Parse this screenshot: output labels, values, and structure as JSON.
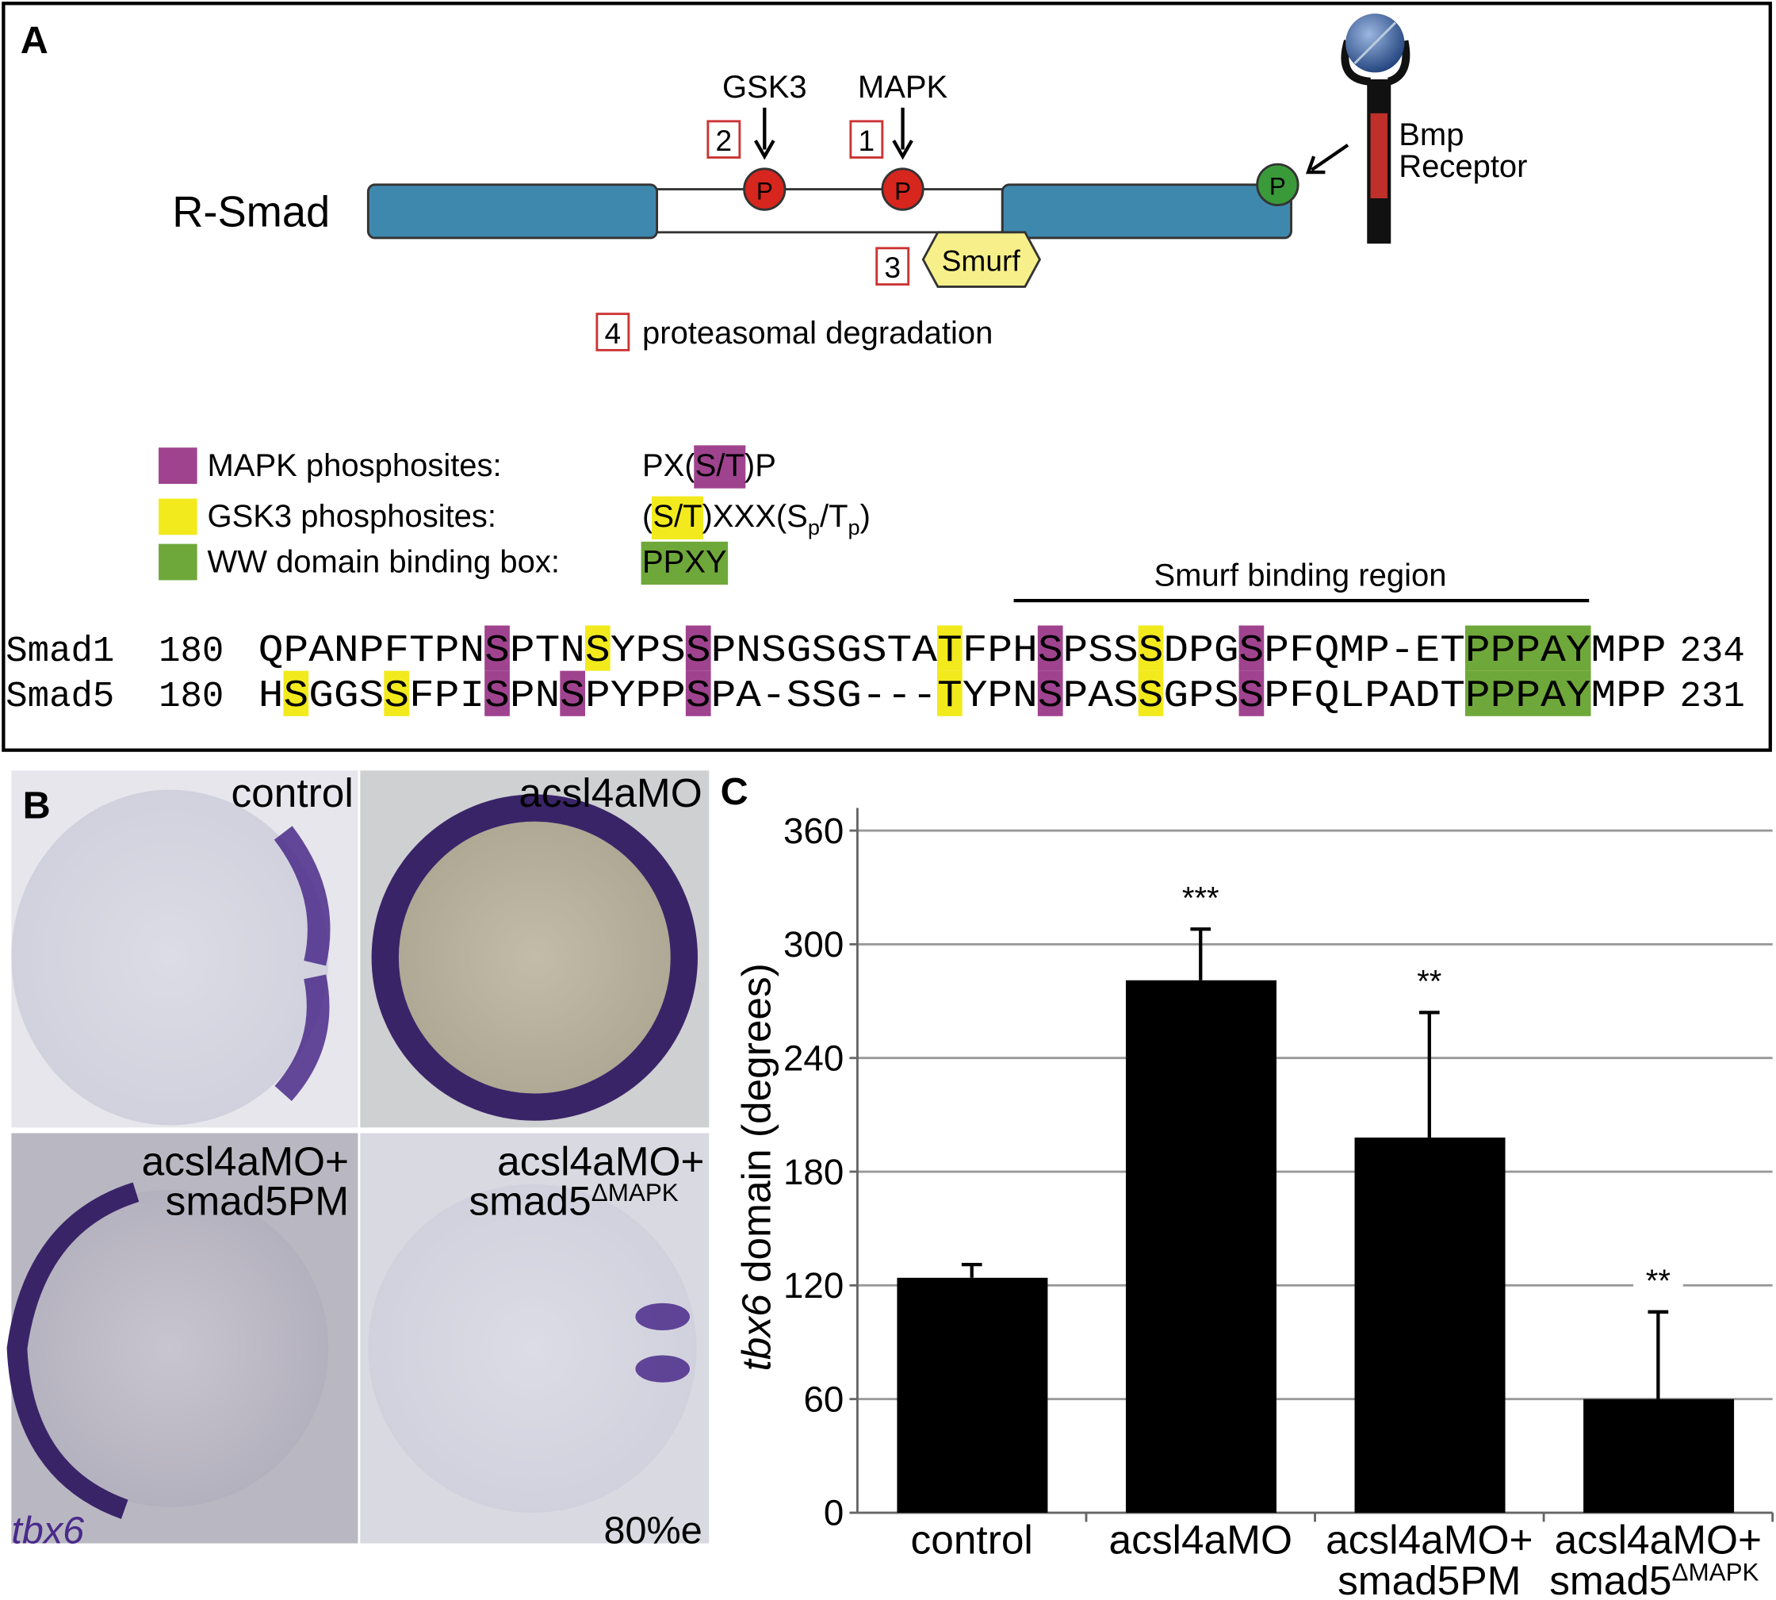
{
  "panel_a": {
    "label": "A",
    "protein": "R-Smad",
    "kinases": [
      "GSK3",
      "MAPK"
    ],
    "steps": [
      "2",
      "1",
      "3",
      "4"
    ],
    "phosphates": [
      "P",
      "P",
      "P"
    ],
    "smurf": "Smurf",
    "degradation": "proteasomal degradation",
    "receptor": [
      "Bmp",
      "Receptor"
    ],
    "legend": [
      {
        "label": "MAPK phosphosites:",
        "color": "#a0438f",
        "motif": [
          {
            "text": "PX("
          },
          {
            "text": "S/T",
            "style": "highlight"
          },
          {
            "text": ")P"
          }
        ]
      },
      {
        "label": "GSK3 phosphosites:",
        "color": "#f2ea1c",
        "motif": [
          {
            "text": "("
          },
          {
            "text": "S/T",
            "style": "highlight"
          },
          {
            "text": ")XXX(S"
          },
          {
            "text": "p",
            "style": "sub"
          },
          {
            "text": "/T"
          },
          {
            "text": "p",
            "style": "sub"
          },
          {
            "text": ")"
          }
        ]
      },
      {
        "label": "WW domain binding box:",
        "color": "#6fa83a",
        "motif": [
          {
            "text": "PPXY",
            "style": "highlight"
          }
        ]
      }
    ],
    "smurf_region": "Smurf binding region",
    "alignment": [
      {
        "name": "Smad1",
        "start": 180,
        "sequence": "QPANPFTPNSPTNSYPSSPNSGSGSTATFPHSPSSSDPGSPFQMP-ETPPPAYMPP",
        "end": 234
      },
      {
        "name": "Smad5",
        "start": 180,
        "sequence": "HSGGSSFPISPNSPYPPSPA-SSG---TYPNSPASSGPSSPFQLPADTPPPAYMPP",
        "end": 231
      }
    ],
    "highlights": [
      {
        "row": 0,
        "start": 9,
        "length": 1,
        "kind": 0
      },
      {
        "row": 0,
        "start": 13,
        "length": 1,
        "kind": 1
      },
      {
        "row": 0,
        "start": 17,
        "length": 1,
        "kind": 0
      },
      {
        "row": 0,
        "start": 27,
        "length": 1,
        "kind": 1
      },
      {
        "row": 0,
        "start": 31,
        "length": 1,
        "kind": 0
      },
      {
        "row": 0,
        "start": 35,
        "length": 1,
        "kind": 1
      },
      {
        "row": 0,
        "start": 39,
        "length": 1,
        "kind": 0
      },
      {
        "row": 0,
        "start": 48,
        "length": 5,
        "kind": 2
      },
      {
        "row": 1,
        "start": 1,
        "length": 1,
        "kind": 1
      },
      {
        "row": 1,
        "start": 5,
        "length": 1,
        "kind": 1
      },
      {
        "row": 1,
        "start": 9,
        "length": 1,
        "kind": 0
      },
      {
        "row": 1,
        "start": 12,
        "length": 1,
        "kind": 0
      },
      {
        "row": 1,
        "start": 17,
        "length": 1,
        "kind": 0
      },
      {
        "row": 1,
        "start": 27,
        "length": 1,
        "kind": 1
      },
      {
        "row": 1,
        "start": 31,
        "length": 1,
        "kind": 0
      },
      {
        "row": 1,
        "start": 35,
        "length": 1,
        "kind": 1
      },
      {
        "row": 1,
        "start": 39,
        "length": 1,
        "kind": 0
      },
      {
        "row": 1,
        "start": 48,
        "length": 5,
        "kind": 2
      }
    ]
  },
  "panel_b": {
    "label": "B",
    "images": [
      {
        "lines": [
          "control"
        ]
      },
      {
        "lines": [
          "acsl4aMO"
        ]
      },
      {
        "lines": [
          "acsl4aMO+",
          "smad5PM"
        ]
      },
      {
        "lines": [
          "acsl4aMO+",
          "smad5"
        ],
        "sup": "ΔMAPK"
      }
    ],
    "gene": "tbx6",
    "stage": "80%e"
  },
  "chart_data": {
    "type": "bar",
    "panel_label": "C",
    "ylabel_parts": [
      "tbx6",
      "domain (degrees)"
    ],
    "categories": [
      [
        "control"
      ],
      [
        "acsl4aMO"
      ],
      [
        "acsl4aMO+",
        "smad5PM"
      ],
      [
        "acsl4aMO+",
        "smad5"
      ]
    ],
    "category_superscripts": [
      null,
      null,
      null,
      "ΔMAPK"
    ],
    "values": [
      124,
      281,
      198,
      60
    ],
    "errors": [
      7,
      27,
      66,
      46
    ],
    "annotations": [
      null,
      "***",
      "**",
      "**"
    ],
    "color": "#000000",
    "ylim": [
      0,
      360
    ],
    "yticks": [
      0,
      60,
      120,
      180,
      240,
      300,
      360
    ],
    "grid": true
  }
}
